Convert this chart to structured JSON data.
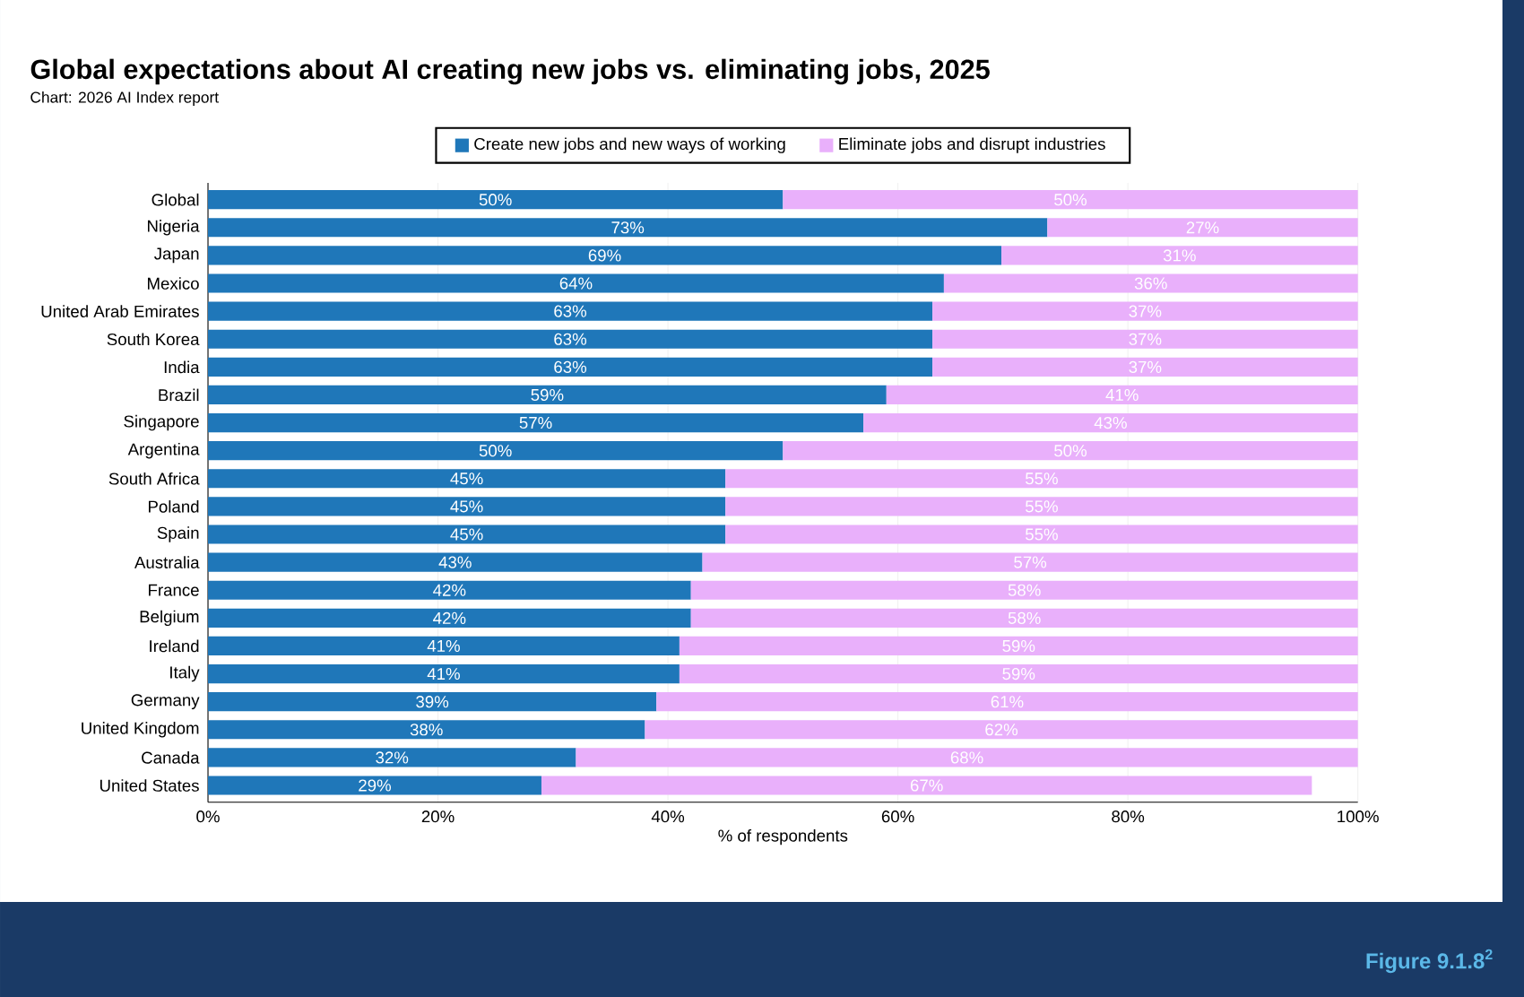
{
  "chart_data": {
    "type": "bar",
    "orientation": "horizontal",
    "stacked": true,
    "title": "Global expectations about AI creating new jobs vs. eliminating jobs, 2025",
    "xlabel": "% of respondents",
    "annotations": [
      "Chart: 2026 AI Index report",
      "Figure 9.1.8$^{2}$"
    ],
    "categories": [
      "Global",
      "Nigeria",
      "Japan",
      "Mexico",
      "United Arab Emirates",
      "South Korea",
      "India",
      "Brazil",
      "Singapore",
      "Argentina",
      "South Africa",
      "Poland",
      "Spain",
      "Australia",
      "France",
      "Belgium",
      "Ireland",
      "Italy",
      "Germany",
      "United Kingdom",
      "Canada",
      "United States"
    ],
    "series": [
      {
        "name": "Create new jobs and new ways of working",
        "color": "#1f77b9",
        "values": [
          50,
          73,
          69,
          64,
          63,
          63,
          63,
          59,
          57,
          50,
          45,
          45,
          45,
          43,
          42,
          42,
          41,
          41,
          39,
          38,
          32,
          29
        ],
        "value_labels": [
          "50%",
          "73%",
          "69%",
          "64%",
          "63%",
          "63%",
          "63%",
          "59%",
          "57%",
          "50%",
          "45%",
          "45%",
          "45%",
          "43%",
          "42%",
          "42%",
          "41%",
          "41%",
          "39%",
          "38%",
          "32%",
          "29%"
        ]
      },
      {
        "name": "Eliminate jobs and disrupt industries",
        "color": "#e9b0fb",
        "values": [
          50,
          27,
          31,
          36,
          37,
          37,
          37,
          41,
          43,
          50,
          55,
          55,
          55,
          57,
          58,
          58,
          59,
          59,
          61,
          62,
          68,
          67
        ],
        "value_labels": [
          "50%",
          "27%",
          "31%",
          "36%",
          "37%",
          "37%",
          "37%",
          "41%",
          "43%",
          "50%",
          "55%",
          "55%",
          "55%",
          "57%",
          "58%",
          "58%",
          "59%",
          "59%",
          "61%",
          "62%",
          "68%",
          "67%"
        ]
      }
    ],
    "xlim": [
      0,
      100
    ],
    "xticks": [
      {
        "value": 0,
        "label": "0%"
      },
      {
        "value": 20,
        "label": "20%"
      },
      {
        "value": 40,
        "label": "40%"
      },
      {
        "value": 60,
        "label": "60%"
      },
      {
        "value": 80,
        "label": "80%"
      },
      {
        "value": 100,
        "label": "100%"
      }
    ],
    "grid": "x",
    "legend": "top"
  }
}
